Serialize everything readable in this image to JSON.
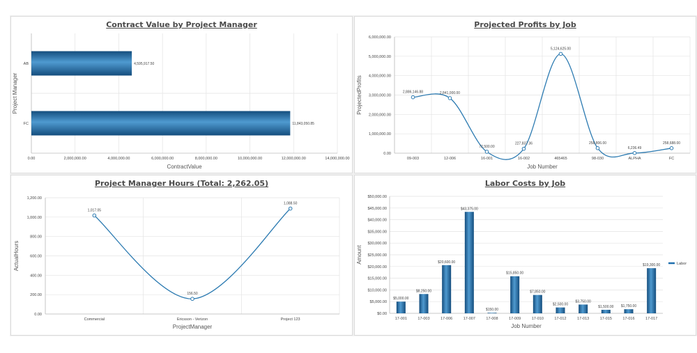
{
  "page": {
    "background": "#ffffff"
  },
  "colors": {
    "bar": "#1f6fae",
    "bar_light": "#4f9ad0",
    "bar_dark": "#144d7d",
    "line": "#2b7ab1",
    "marker_fill": "#ffffff"
  },
  "chart_data": [
    {
      "id": "contract",
      "type": "bar",
      "orientation": "horizontal",
      "title": "Contract Value by Project Manager",
      "xlabel": "ContractValue",
      "ylabel": "Project Manager",
      "categories": [
        "AB",
        "FC"
      ],
      "values": [
        4595917.5,
        11843050.85
      ],
      "value_labels": [
        "4,595,917.50",
        "11,843,050.85"
      ],
      "xlim": [
        0,
        14000000
      ],
      "ticks": [
        0,
        2000000,
        4000000,
        6000000,
        8000000,
        10000000,
        12000000,
        14000000
      ],
      "tick_labels": [
        "0.00",
        "2,000,000.00",
        "4,000,000.00",
        "6,000,000.00",
        "8,000,000.00",
        "10,000,000.00",
        "12,000,000.00",
        "14,000,000.00"
      ],
      "grid": true
    },
    {
      "id": "profits",
      "type": "line",
      "smooth": true,
      "title": "Projected Profits by Job",
      "xlabel": "Job Number",
      "ylabel": "ProjectedProfits",
      "categories": [
        "09-003",
        "12-006",
        "16-001",
        "16-002",
        "465465",
        "98-030",
        "ALPHA",
        "FC"
      ],
      "values": [
        2886146.88,
        2841000.0,
        72500.0,
        227837.36,
        5124625.0,
        258806.0,
        6236.49,
        258688.0
      ],
      "value_labels": [
        "2,886,146.88",
        "2,841,000.00",
        "72,500.00",
        "227,837.36",
        "5,124,625.00",
        "258,806.00",
        "6,236.49",
        "258,688.00"
      ],
      "ylim": [
        0,
        6000000
      ],
      "ticks": [
        0,
        1000000,
        2000000,
        3000000,
        4000000,
        5000000,
        6000000
      ],
      "tick_labels": [
        "0.00",
        "1,000,000.00",
        "2,000,000.00",
        "3,000,000.00",
        "4,000,000.00",
        "5,000,000.00",
        "6,000,000.00"
      ],
      "grid": true
    },
    {
      "id": "hours",
      "type": "line",
      "smooth": true,
      "title": "Project Manager Hours (Total: 2,262.05)",
      "xlabel": "ProjectManager",
      "ylabel": "ActualHours",
      "categories": [
        "Commercial",
        "Ericsson - Verizon",
        "Project 123"
      ],
      "values": [
        1017.05,
        156.5,
        1088.5
      ],
      "value_labels": [
        "1,017.05",
        "156.50",
        "1,088.50"
      ],
      "ylim": [
        0,
        1200
      ],
      "ticks": [
        0,
        200,
        400,
        600,
        800,
        1000,
        1200
      ],
      "tick_labels": [
        "0.00",
        "200.00",
        "400.00",
        "600.00",
        "800.00",
        "1,000.00",
        "1,200.00"
      ],
      "grid": true
    },
    {
      "id": "labor",
      "type": "bar",
      "orientation": "vertical",
      "title": "Labor Costs by Job",
      "xlabel": "Job Number",
      "ylabel": "Amount",
      "categories": [
        "17-001",
        "17-003",
        "17-006",
        "17-007",
        "17-008",
        "17-009",
        "17-010",
        "17-012",
        "17-013",
        "17-015",
        "17-016",
        "17-017"
      ],
      "series": [
        {
          "name": "Labor",
          "values": [
            5000,
            8250,
            20600,
            43375,
            150,
            15850,
            7850,
            2500,
            3750,
            1500,
            1750,
            19300
          ],
          "value_labels": [
            "$5,000.00",
            "$8,250.00",
            "$20,600.00",
            "$43,375.00",
            "$150.00",
            "$15,850.00",
            "$7,850.00",
            "$2,500.00",
            "$3,750.00",
            "$1,500.00",
            "$1,750.00",
            "$19,300.00"
          ]
        }
      ],
      "ylim": [
        0,
        50000
      ],
      "ticks": [
        0,
        5000,
        10000,
        15000,
        20000,
        25000,
        30000,
        35000,
        40000,
        45000,
        50000
      ],
      "tick_labels": [
        "$0.00",
        "$5,000.00",
        "$10,000.00",
        "$15,000.00",
        "$20,000.00",
        "$25,000.00",
        "$30,000.00",
        "$35,000.00",
        "$40,000.00",
        "$45,000.00",
        "$50,000.00"
      ],
      "legend": "right",
      "grid": true
    }
  ]
}
